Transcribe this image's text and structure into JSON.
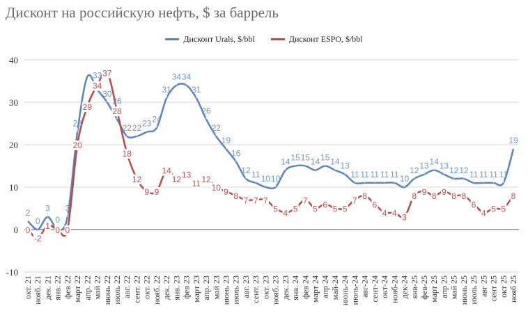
{
  "title": "Дисконт на российскую нефть, $ за баррель",
  "chart_data": {
    "type": "line",
    "title": "Дисконт на российскую нефть, $ за баррель",
    "legend_position": "top",
    "grid": true,
    "ylim": [
      -10,
      40
    ],
    "yticks": [
      -10,
      0,
      10,
      20,
      30,
      40
    ],
    "categories": [
      "окт. 21",
      "нояб. 21",
      "дек. 21",
      "янв. 22",
      "фев 22",
      "март 22",
      "апр. 22",
      "май 22",
      "июнь 22",
      "июль 22",
      "авг. 22",
      "сент. 22",
      "окт. 22",
      "нояб. 22",
      "дек. 22",
      "янв. 23",
      "фев 23",
      "март 23",
      "апр. 23",
      "май 23",
      "июнь 23",
      "июль 23",
      "авг. 23",
      "сент. 23",
      "окт. 23",
      "нояб. 23",
      "дек. 23",
      "янв. 24",
      "фев 24",
      "март 24",
      "апр 24",
      "май-24",
      "июнь-24",
      "июль-24",
      "авг-24",
      "сент-24",
      "окт-24",
      "нояб-24",
      "дек-24",
      "янв-25",
      "фев-25",
      "март 25",
      "апр 25",
      "май 25",
      "июнь 25",
      "июль 25",
      "авг 25",
      "сент 25",
      "окт 25",
      "нояб 25"
    ],
    "series": [
      {
        "name": "Дисконт Urals, $/bbl",
        "color": "#5b84bc",
        "label_color": "#7096c8",
        "values": [
          2,
          0,
          3,
          0,
          3,
          23,
          36,
          33,
          30,
          26,
          22,
          22,
          23,
          24,
          31,
          34,
          34,
          31,
          26,
          22,
          19,
          16,
          12,
          11,
          10,
          10,
          14,
          15,
          15,
          14,
          15,
          14,
          13,
          11,
          11,
          11,
          11,
          11,
          10,
          12,
          13,
          14,
          13,
          12,
          12,
          11,
          11,
          11,
          11,
          19
        ]
      },
      {
        "name": "Дисконт ESPO, $/bbl",
        "color": "#b84a47",
        "label_color": "#c0504d",
        "values": [
          0,
          -2,
          1,
          0,
          0,
          20,
          29,
          34,
          37,
          28,
          18,
          12,
          9,
          9,
          14,
          12,
          13,
          11,
          12,
          10,
          9,
          8,
          7,
          7,
          7,
          5,
          4,
          5,
          7,
          5,
          6,
          5,
          5,
          7,
          8,
          6,
          4,
          4,
          3,
          8,
          9,
          8,
          9,
          8,
          8,
          6,
          4,
          5,
          5,
          8
        ]
      }
    ]
  }
}
